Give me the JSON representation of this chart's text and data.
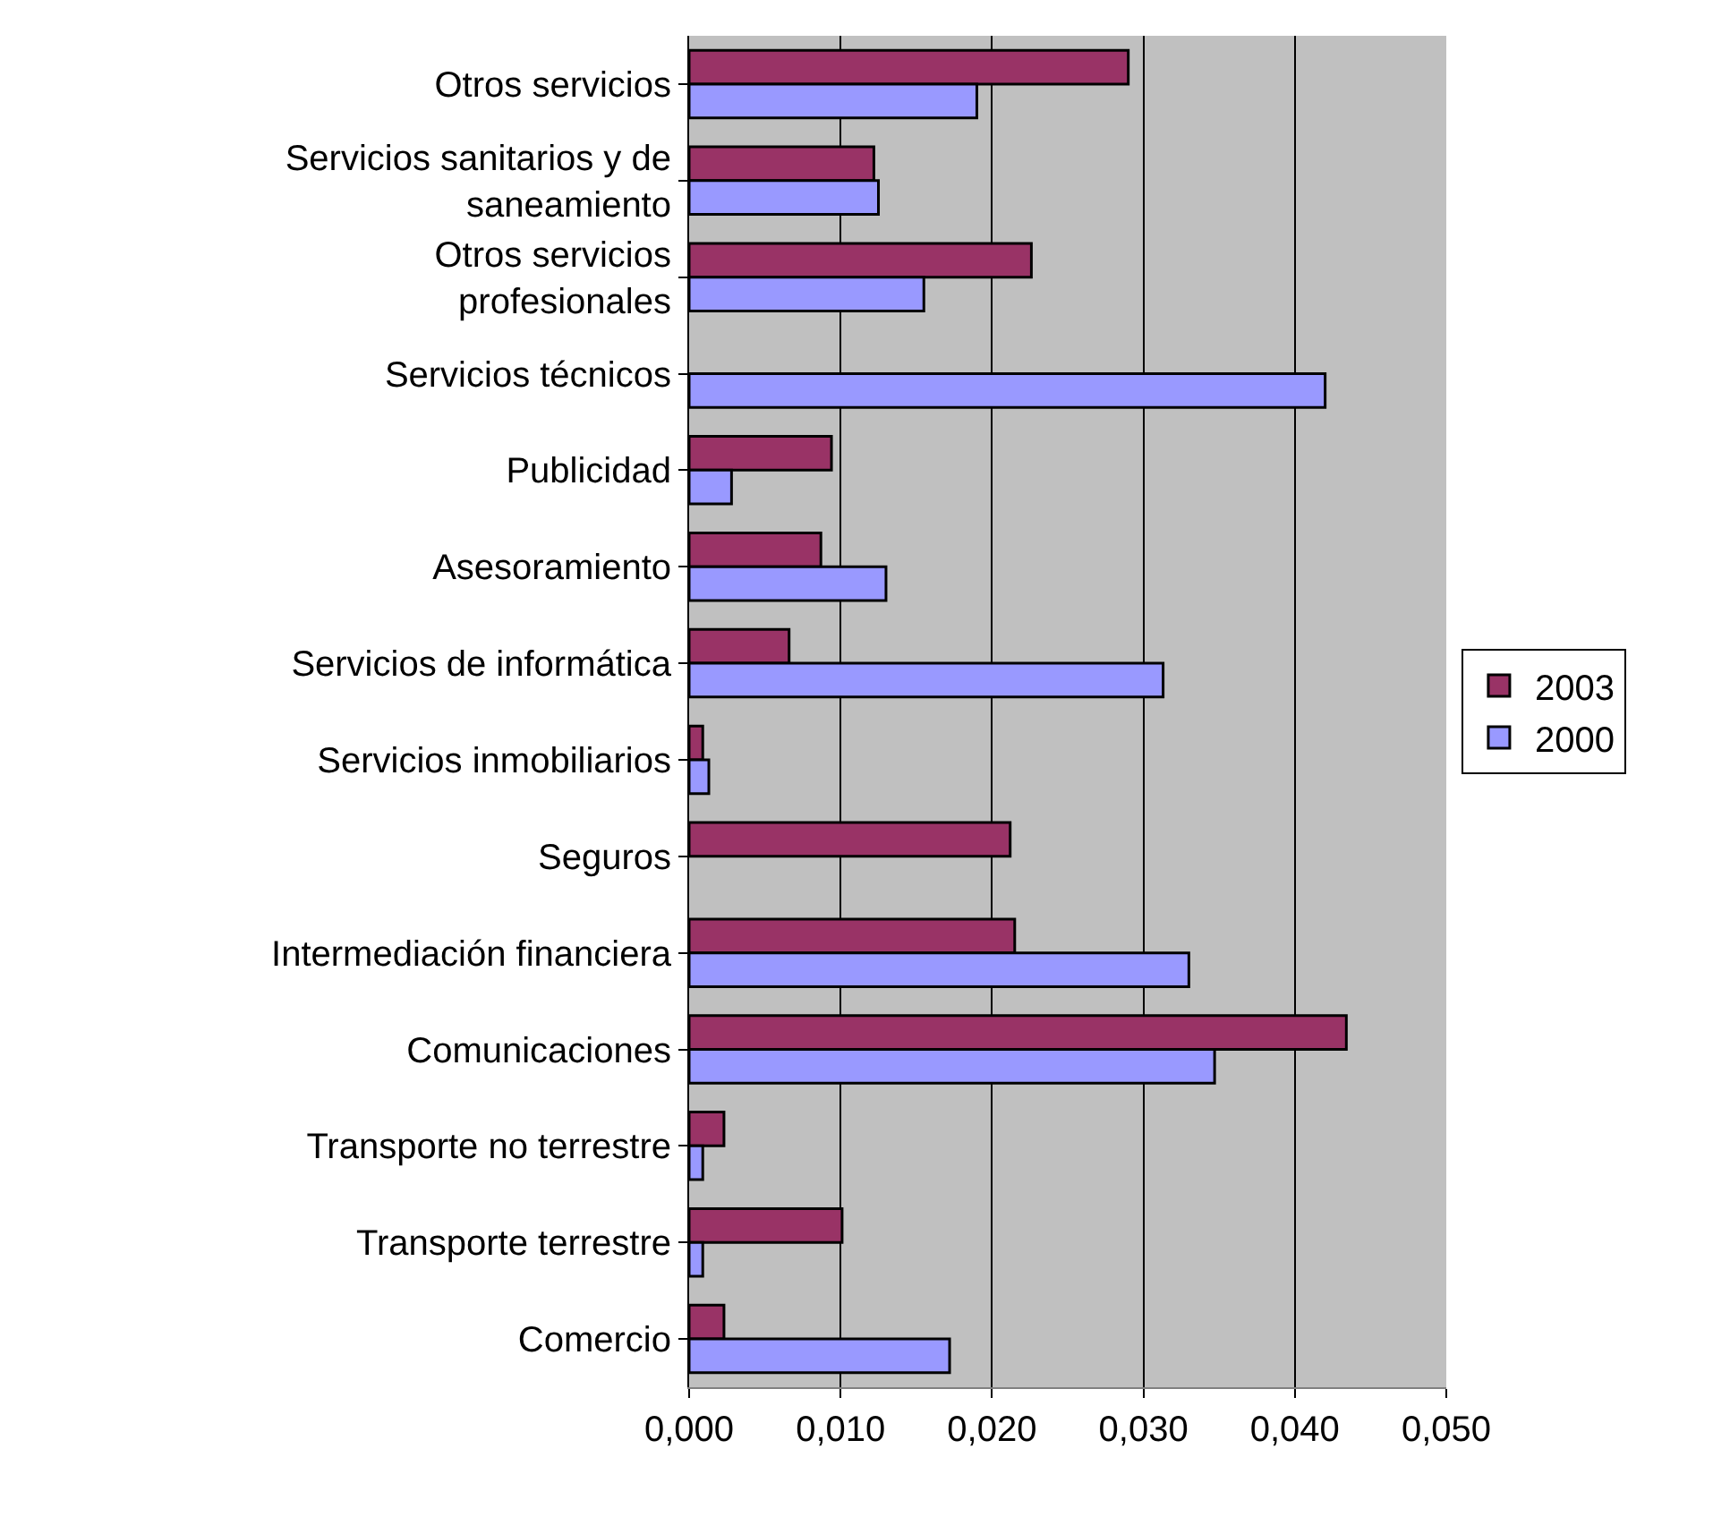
{
  "chart_data": {
    "type": "bar",
    "orientation": "horizontal",
    "categories": [
      "Otros servicios",
      "Servicios sanitarios y de saneamiento",
      "Otros servicios profesionales",
      "Servicios técnicos",
      "Publicidad",
      "Asesoramiento",
      "Servicios de informática",
      "Servicios inmobiliarios",
      "Seguros",
      "Intermediación financiera",
      "Comunicaciones",
      "Transporte no terrestre",
      "Transporte terrestre",
      "Comercio"
    ],
    "series": [
      {
        "name": "2003",
        "color": "#993366",
        "values": [
          0.029,
          0.0122,
          0.0226,
          null,
          0.0094,
          0.0087,
          0.0066,
          0.0009,
          0.0212,
          0.0215,
          0.0434,
          0.0023,
          0.0101,
          0.0023
        ]
      },
      {
        "name": "2000",
        "color": "#9999ff",
        "values": [
          0.019,
          0.0125,
          0.0155,
          0.042,
          0.0028,
          0.013,
          0.0313,
          0.0013,
          null,
          0.033,
          0.0347,
          0.0009,
          0.0009,
          0.0172
        ]
      }
    ],
    "xlim": [
      0,
      0.05
    ],
    "xticks": [
      {
        "value": 0,
        "label": "0,000"
      },
      {
        "value": 0.01,
        "label": "0,010"
      },
      {
        "value": 0.02,
        "label": "0,020"
      },
      {
        "value": 0.03,
        "label": "0,030"
      },
      {
        "value": 0.04,
        "label": "0,040"
      },
      {
        "value": 0.05,
        "label": "0,050"
      }
    ],
    "grid": "x",
    "legend": "right"
  }
}
